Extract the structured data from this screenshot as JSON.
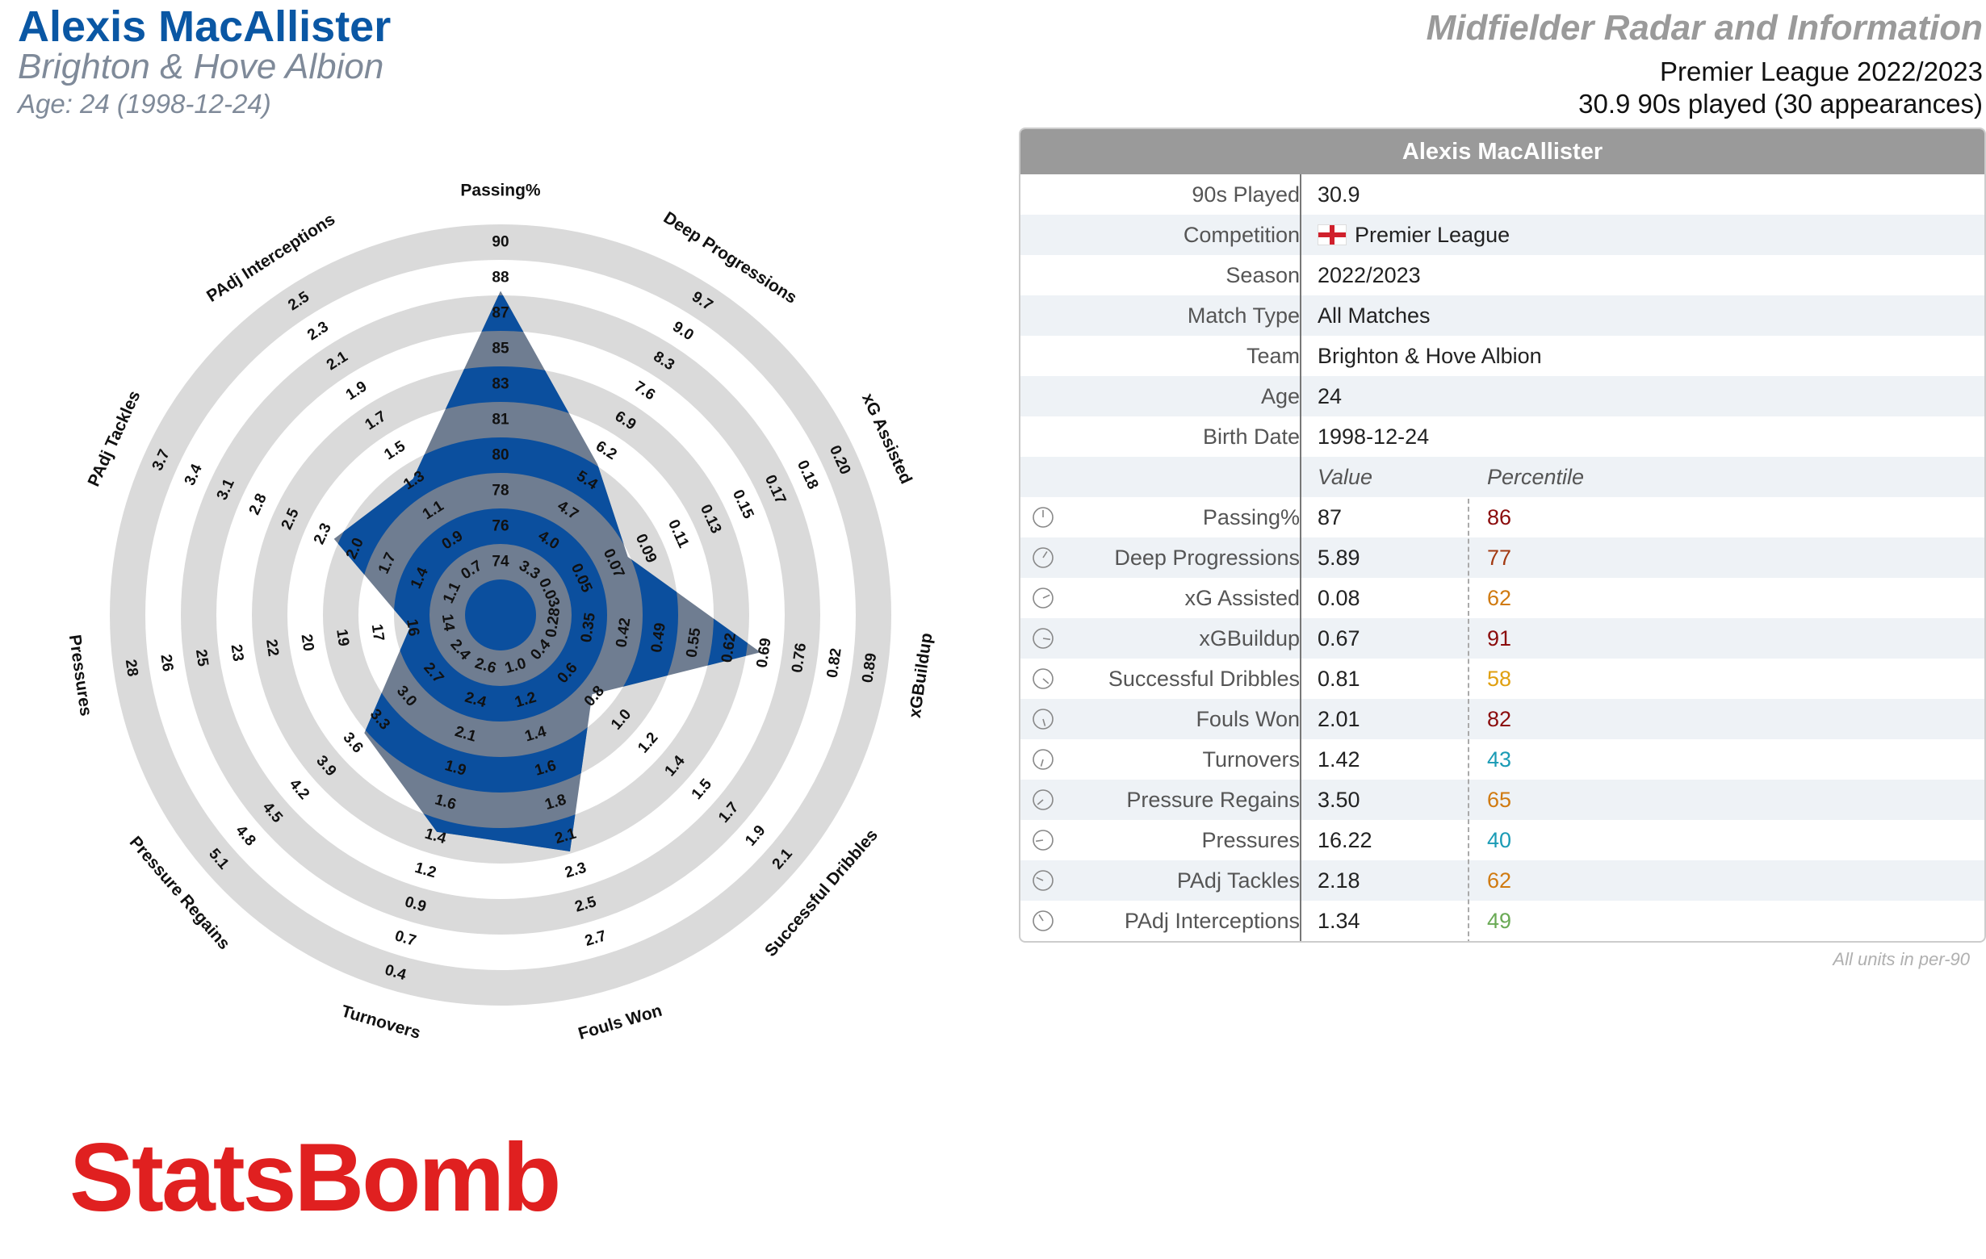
{
  "header": {
    "player_name": "Alexis MacAllister",
    "team": "Brighton & Hove Albion",
    "age_line": "Age: 24 (1998-12-24)",
    "radar_title": "Midfielder Radar and Information",
    "league_line": "Premier League 2022/2023",
    "played_line": "30.9 90s played (30 appearances)"
  },
  "colors": {
    "player_blue": "#0a57a4",
    "player_fill": "#0b4f9e",
    "poly_gray": "#6f7d91",
    "ring_gray": "#dadada",
    "header_gray": "#9a9a9a",
    "logo_red": "#e02020"
  },
  "chart_data": {
    "type": "radar",
    "series": [
      {
        "name": "Alexis MacAllister",
        "values": [
          87,
          5.89,
          0.08,
          0.67,
          0.81,
          2.01,
          1.42,
          3.5,
          16.22,
          2.18,
          1.34
        ]
      }
    ],
    "axes": [
      {
        "name": "Passing%",
        "ticks": [
          "74",
          "76",
          "78",
          "80",
          "81",
          "83",
          "85",
          "87",
          "88",
          "90"
        ],
        "min": 74,
        "max": 90
      },
      {
        "name": "Deep Progressions",
        "ticks": [
          "3.3",
          "4.0",
          "4.7",
          "5.4",
          "6.2",
          "6.9",
          "7.6",
          "8.3",
          "9.0",
          "9.7"
        ],
        "min": 3.3,
        "max": 9.7
      },
      {
        "name": "xG Assisted",
        "ticks": [
          "0.03",
          "0.05",
          "0.07",
          "0.09",
          "0.11",
          "0.13",
          "0.15",
          "0.17",
          "0.18",
          "0.20"
        ],
        "min": 0.03,
        "max": 0.2
      },
      {
        "name": "xGBuildup",
        "ticks": [
          "0.28",
          "0.35",
          "0.42",
          "0.49",
          "0.55",
          "0.62",
          "0.69",
          "0.76",
          "0.82",
          "0.89"
        ],
        "min": 0.28,
        "max": 0.89
      },
      {
        "name": "Successful Dribbles",
        "ticks": [
          "0.4",
          "0.6",
          "0.8",
          "1.0",
          "1.2",
          "1.4",
          "1.5",
          "1.7",
          "1.9",
          "2.1"
        ],
        "min": 0.4,
        "max": 2.1
      },
      {
        "name": "Fouls Won",
        "ticks": [
          "1.0",
          "1.2",
          "1.4",
          "1.6",
          "1.8",
          "2.1",
          "2.3",
          "2.5",
          "2.7"
        ],
        "min": 1.0,
        "max": 2.7
      },
      {
        "name": "Turnovers",
        "ticks": [
          "2.6",
          "2.4",
          "2.1",
          "1.9",
          "1.6",
          "1.4",
          "1.2",
          "0.9",
          "0.7",
          "0.4"
        ],
        "min": 2.6,
        "max": 0.4
      },
      {
        "name": "Pressure Regains",
        "ticks": [
          "2.4",
          "2.7",
          "3.0",
          "3.3",
          "3.6",
          "3.9",
          "4.2",
          "4.5",
          "4.8",
          "5.1"
        ],
        "min": 2.4,
        "max": 5.1
      },
      {
        "name": "Pressures",
        "ticks": [
          "14",
          "16",
          "17",
          "19",
          "20",
          "22",
          "23",
          "25",
          "26",
          "28"
        ],
        "min": 14,
        "max": 28
      },
      {
        "name": "PAdj Tackles",
        "ticks": [
          "1.1",
          "1.4",
          "1.7",
          "2.0",
          "2.3",
          "2.5",
          "2.8",
          "3.1",
          "3.4",
          "3.7"
        ],
        "min": 1.1,
        "max": 3.7
      },
      {
        "name": "PAdj Interceptions",
        "ticks": [
          "0.7",
          "0.9",
          "1.1",
          "1.3",
          "1.5",
          "1.7",
          "1.9",
          "2.1",
          "2.3",
          "2.5"
        ],
        "min": 0.7,
        "max": 2.5
      }
    ]
  },
  "table": {
    "title": "Alexis MacAllister",
    "info_rows": [
      {
        "label": "90s Played",
        "value": "30.9"
      },
      {
        "label": "Competition",
        "value": "Premier League",
        "flag": "england-flag"
      },
      {
        "label": "Season",
        "value": "2022/2023"
      },
      {
        "label": "Match Type",
        "value": "All Matches"
      },
      {
        "label": "Team",
        "value": "Brighton & Hove Albion"
      },
      {
        "label": "Age",
        "value": "24"
      },
      {
        "label": "Birth Date",
        "value": "1998-12-24"
      }
    ],
    "value_header": "Value",
    "percentile_header": "Percentile",
    "metric_rows": [
      {
        "label": "Passing%",
        "value": "87",
        "percentile": "86",
        "color": "#8b0c0c"
      },
      {
        "label": "Deep Progressions",
        "value": "5.89",
        "percentile": "77",
        "color": "#a33a12"
      },
      {
        "label": "xG Assisted",
        "value": "0.08",
        "percentile": "62",
        "color": "#d07a10"
      },
      {
        "label": "xGBuildup",
        "value": "0.67",
        "percentile": "91",
        "color": "#8b0c0c"
      },
      {
        "label": "Successful Dribbles",
        "value": "0.81",
        "percentile": "58",
        "color": "#e0a010"
      },
      {
        "label": "Fouls Won",
        "value": "2.01",
        "percentile": "82",
        "color": "#8b0c0c"
      },
      {
        "label": "Turnovers",
        "value": "1.42",
        "percentile": "43",
        "color": "#1a9bb5"
      },
      {
        "label": "Pressure Regains",
        "value": "3.50",
        "percentile": "65",
        "color": "#d07a10"
      },
      {
        "label": "Pressures",
        "value": "16.22",
        "percentile": "40",
        "color": "#1a9bb5"
      },
      {
        "label": "PAdj Tackles",
        "value": "2.18",
        "percentile": "62",
        "color": "#d07a10"
      },
      {
        "label": "PAdj Interceptions",
        "value": "1.34",
        "percentile": "49",
        "color": "#6aaa55"
      }
    ],
    "units_note": "All units in per-90"
  },
  "logo": {
    "text": "StatsBomb"
  }
}
